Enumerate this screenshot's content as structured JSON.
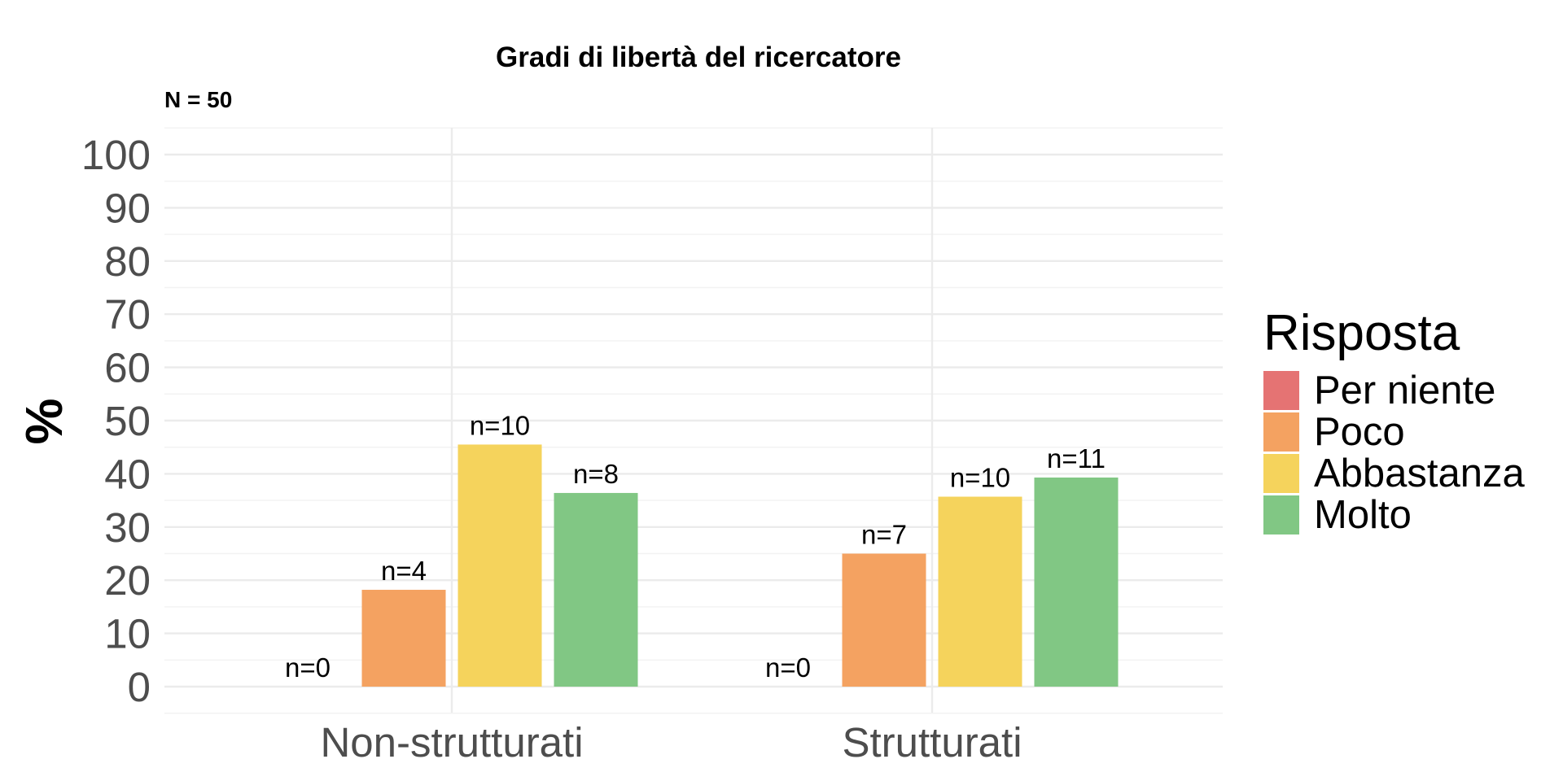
{
  "chart_data": {
    "type": "bar",
    "title": "Gradi di libertà del ricercatore",
    "subtitle": "N = 50",
    "xlabel": "",
    "ylabel": "%",
    "ylim": [
      0,
      100
    ],
    "yticks": [
      "0",
      "10",
      "20",
      "30",
      "40",
      "50",
      "60",
      "70",
      "80",
      "90",
      "100"
    ],
    "categories": [
      "Non-strutturati",
      "Strutturati"
    ],
    "legend": {
      "title": "Risposta",
      "position": "right"
    },
    "grid": true,
    "series": [
      {
        "name": "Per niente",
        "color": "#e57373",
        "values": [
          0,
          0
        ],
        "labels": [
          "n=0",
          "n=0"
        ]
      },
      {
        "name": "Poco",
        "color": "#f4a261",
        "values": [
          18.2,
          25.0
        ],
        "labels": [
          "n=4",
          "n=7"
        ]
      },
      {
        "name": "Abbastanza",
        "color": "#f5d35c",
        "values": [
          45.5,
          35.7
        ],
        "labels": [
          "n=10",
          "n=10"
        ]
      },
      {
        "name": "Molto",
        "color": "#81c784",
        "values": [
          36.4,
          39.3
        ],
        "labels": [
          "n=8",
          "n=11"
        ]
      }
    ]
  }
}
